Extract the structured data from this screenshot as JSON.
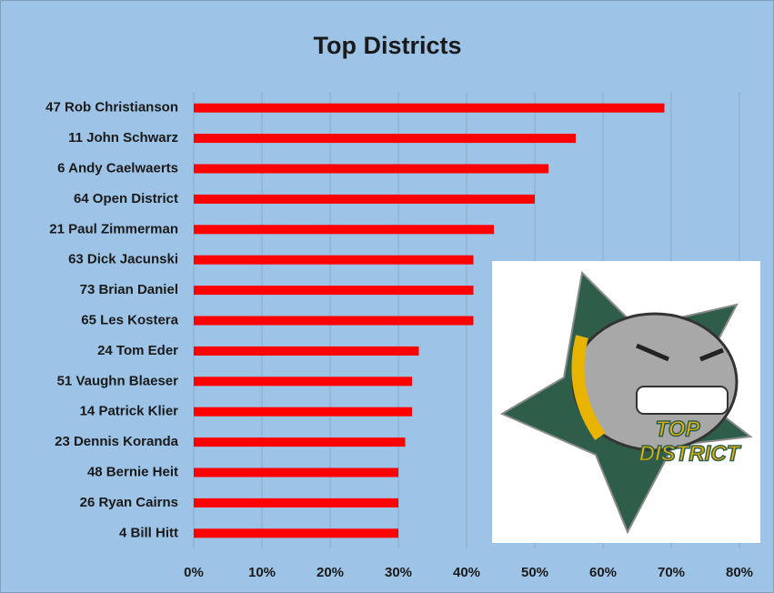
{
  "chart_data": {
    "type": "bar",
    "orientation": "horizontal",
    "title": "Top Districts",
    "categories": [
      "47 Rob Christianson",
      "11 John Schwarz",
      "6 Andy Caelwaerts",
      "64 Open District",
      "21 Paul Zimmerman",
      "63 Dick Jacunski",
      "73 Brian Daniel",
      "65 Les Kostera",
      "24 Tom Eder",
      "51 Vaughn Blaeser",
      "14 Patrick Klier",
      "23 Dennis Koranda",
      "48 Bernie Heit",
      "26 Ryan Cairns",
      "4 Bill Hitt"
    ],
    "values": [
      69,
      56,
      52,
      50,
      44,
      41,
      41,
      41,
      33,
      32,
      32,
      31,
      30,
      30,
      30
    ],
    "color": "#ff0000",
    "xlim": [
      0,
      80
    ],
    "xticks": [
      {
        "value": 0,
        "label": "0%"
      },
      {
        "value": 10,
        "label": "10%"
      },
      {
        "value": 20,
        "label": "20%"
      },
      {
        "value": 30,
        "label": "30%"
      },
      {
        "value": 40,
        "label": "40%"
      },
      {
        "value": 50,
        "label": "50%"
      },
      {
        "value": 60,
        "label": "60%"
      },
      {
        "value": 70,
        "label": "70%"
      },
      {
        "value": 80,
        "label": "80%"
      }
    ],
    "grid": true,
    "annotations": [
      "TOP",
      "DISTRICT"
    ]
  }
}
